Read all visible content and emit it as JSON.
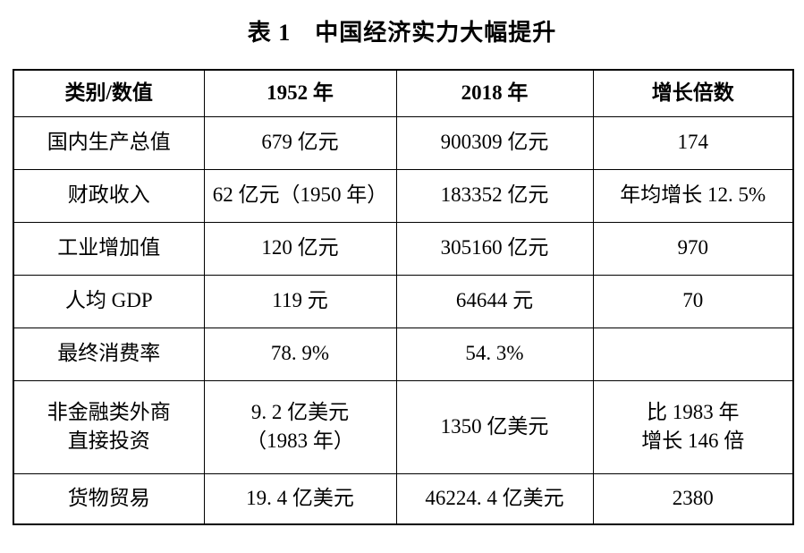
{
  "title": "表 1　中国经济实力大幅提升",
  "table": {
    "headers": [
      "类别/数值",
      "1952 年",
      "2018 年",
      "增长倍数"
    ],
    "rows": [
      {
        "category": "国内生产总值",
        "y1952": "679 亿元",
        "y2018": "900309 亿元",
        "growth": "174"
      },
      {
        "category": "财政收入",
        "y1952": "62 亿元（1950 年）",
        "y2018": "183352 亿元",
        "growth": "年均增长 12. 5%"
      },
      {
        "category": "工业增加值",
        "y1952": "120 亿元",
        "y2018": "305160 亿元",
        "growth": "970"
      },
      {
        "category": "人均 GDP",
        "y1952": "119 元",
        "y2018": "64644 元",
        "growth": "70"
      },
      {
        "category": "最终消费率",
        "y1952": "78. 9%",
        "y2018": "54. 3%",
        "growth": ""
      },
      {
        "category": "非金融类外商\n直接投资",
        "y1952": "9. 2 亿美元\n（1983 年）",
        "y2018": "1350 亿美元",
        "growth": "比 1983 年\n增长 146 倍"
      },
      {
        "category": "货物贸易",
        "y1952": "19. 4 亿美元",
        "y2018": "46224. 4 亿美元",
        "growth": "2380"
      }
    ]
  }
}
